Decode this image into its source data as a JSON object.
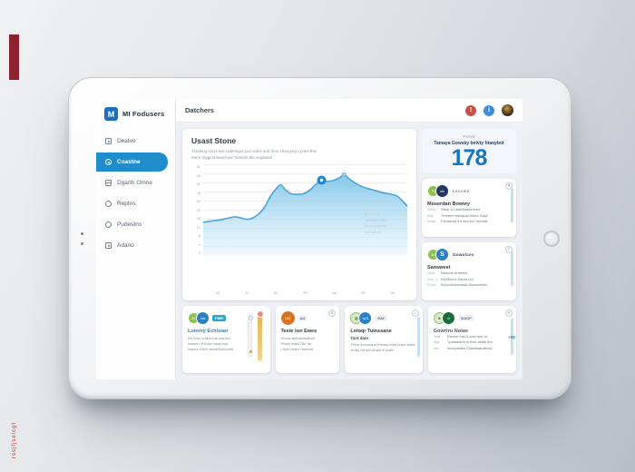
{
  "colors": {
    "accent_blue": "#1f8ccb",
    "stat_blue": "#1477c0",
    "watermark_red": "#8e2130"
  },
  "watermark": {
    "side_text": "rssjfjseicgt"
  },
  "app": {
    "logo_letter": "M",
    "logo_text": "MI Fodusers",
    "header_title": "Datchers"
  },
  "sidebar": {
    "items": [
      {
        "label": "Deatve"
      },
      {
        "label": "Coastne"
      },
      {
        "label": "Dgarth Omne"
      },
      {
        "label": "Reptns"
      },
      {
        "label": "Pudestns"
      },
      {
        "label": "Adano"
      }
    ]
  },
  "chart_card": {
    "title": "Usast Stone",
    "subtitle_line1": "Tracking mest tast caterwget you sales and their changing cycles this",
    "subtitle_line2": "More triggest beachow Tonsets the anglastal",
    "annotation_lines": [
      "ar n b av",
      "ammam mam",
      "amm amwam",
      "ammamm"
    ]
  },
  "chart_data": {
    "type": "area",
    "title": "Usast Stone",
    "x": [
      0,
      4,
      8,
      12,
      15,
      18,
      21,
      24,
      27,
      30,
      33,
      36,
      38,
      40,
      43,
      46,
      49,
      52,
      55,
      58,
      61,
      64,
      67,
      69,
      71,
      74,
      77,
      80,
      84,
      88,
      92,
      95,
      98,
      100
    ],
    "y": [
      14.5,
      15,
      15.5,
      16.2,
      16.8,
      16.5,
      15.8,
      16.2,
      18,
      21,
      26,
      29.5,
      31,
      29,
      27,
      26.8,
      27,
      28.5,
      31,
      33,
      32.5,
      33,
      34.2,
      35.5,
      34,
      32,
      30.5,
      29.5,
      28.5,
      27.5,
      26.8,
      26,
      23.5,
      21.5
    ],
    "ylim": [
      0,
      40
    ],
    "y_ticks": [
      "40",
      "36",
      "32",
      "28",
      "24",
      "20",
      "16",
      "12",
      "8",
      "4",
      "0"
    ],
    "x_ticks": [
      "03",
      "12",
      "52",
      "99",
      "56",
      "97",
      "93"
    ],
    "marker": {
      "x": 58,
      "y": 33
    },
    "peak_dot": {
      "x": 69,
      "y": 35.5
    },
    "xlabel": "",
    "ylabel": "",
    "grid": "on",
    "legend_position": "none",
    "line_color": "#4aa3d8",
    "fill_top": "#7ec4e8",
    "fill_bottom": "#dff2fb"
  },
  "stats": {
    "eyebrow": "Trends",
    "caption": "Tamaya Gowsky betvty htanybot",
    "value": "178"
  },
  "right_cards": [
    {
      "tag": "Leccein",
      "coin": "70",
      "coin2": "ntn",
      "title": "Moserdan Bowtey",
      "rows": [
        [
          "Story",
          "Stear a Lawelhasrertche"
        ],
        [
          "Wty",
          "Treeste rishsquat ridest Sawt"
        ],
        [
          "Wout",
          "Prewardd it it lies ths Torthalt"
        ]
      ]
    },
    {
      "tag": "Gowatces",
      "coin": "40",
      "coin2": "S",
      "title": "Sansweet",
      "rows": [
        [
          "Uroe",
          "Naacde Amtwee"
        ],
        [
          "Sen. 1",
          "WySline's Sabot Lut"
        ],
        [
          "Froot",
          "Anundsnortarsat Disscatebw"
        ]
      ]
    }
  ],
  "bottom_cards": [
    {
      "badge": "FWE",
      "coin": "31",
      "coin2": "ntw",
      "title": "Lumrey Echlstan",
      "lines": [
        "IW Wor ta tast that wantes",
        "Inlaws t Schad Smarchat",
        "Noaca GWS viewsSichcows"
      ]
    },
    {
      "badge": "AU",
      "coin": "105",
      "title": "Teste ton Ewes",
      "lines": [
        "Roust wethtstrftyftaut",
        "Phant stakit /W/ far",
        "Litvel chant Tortelod"
      ]
    },
    {
      "badge": "EAY",
      "coin": "w23",
      "title": "Letoqr Tuinssane",
      "subtitle": "Tant date",
      "lines": [
        "Titere Accusarst Erteaw Mas Hybe Aatst",
        "at ftty rat ant whunt A svahl"
      ]
    },
    {
      "badge": "911CF",
      "coin": "nt",
      "title": "Gowrtru Notae",
      "scroll_label": "+80",
      "rows": [
        [
          "Tear",
          "Rewse Sas it acts antr to"
        ],
        [
          "Aqc",
          "Tpatweartrt is tivts astfts tha"
        ],
        [
          "ww",
          "rscmpssthe Esseatqsctfshw"
        ]
      ]
    }
  ]
}
